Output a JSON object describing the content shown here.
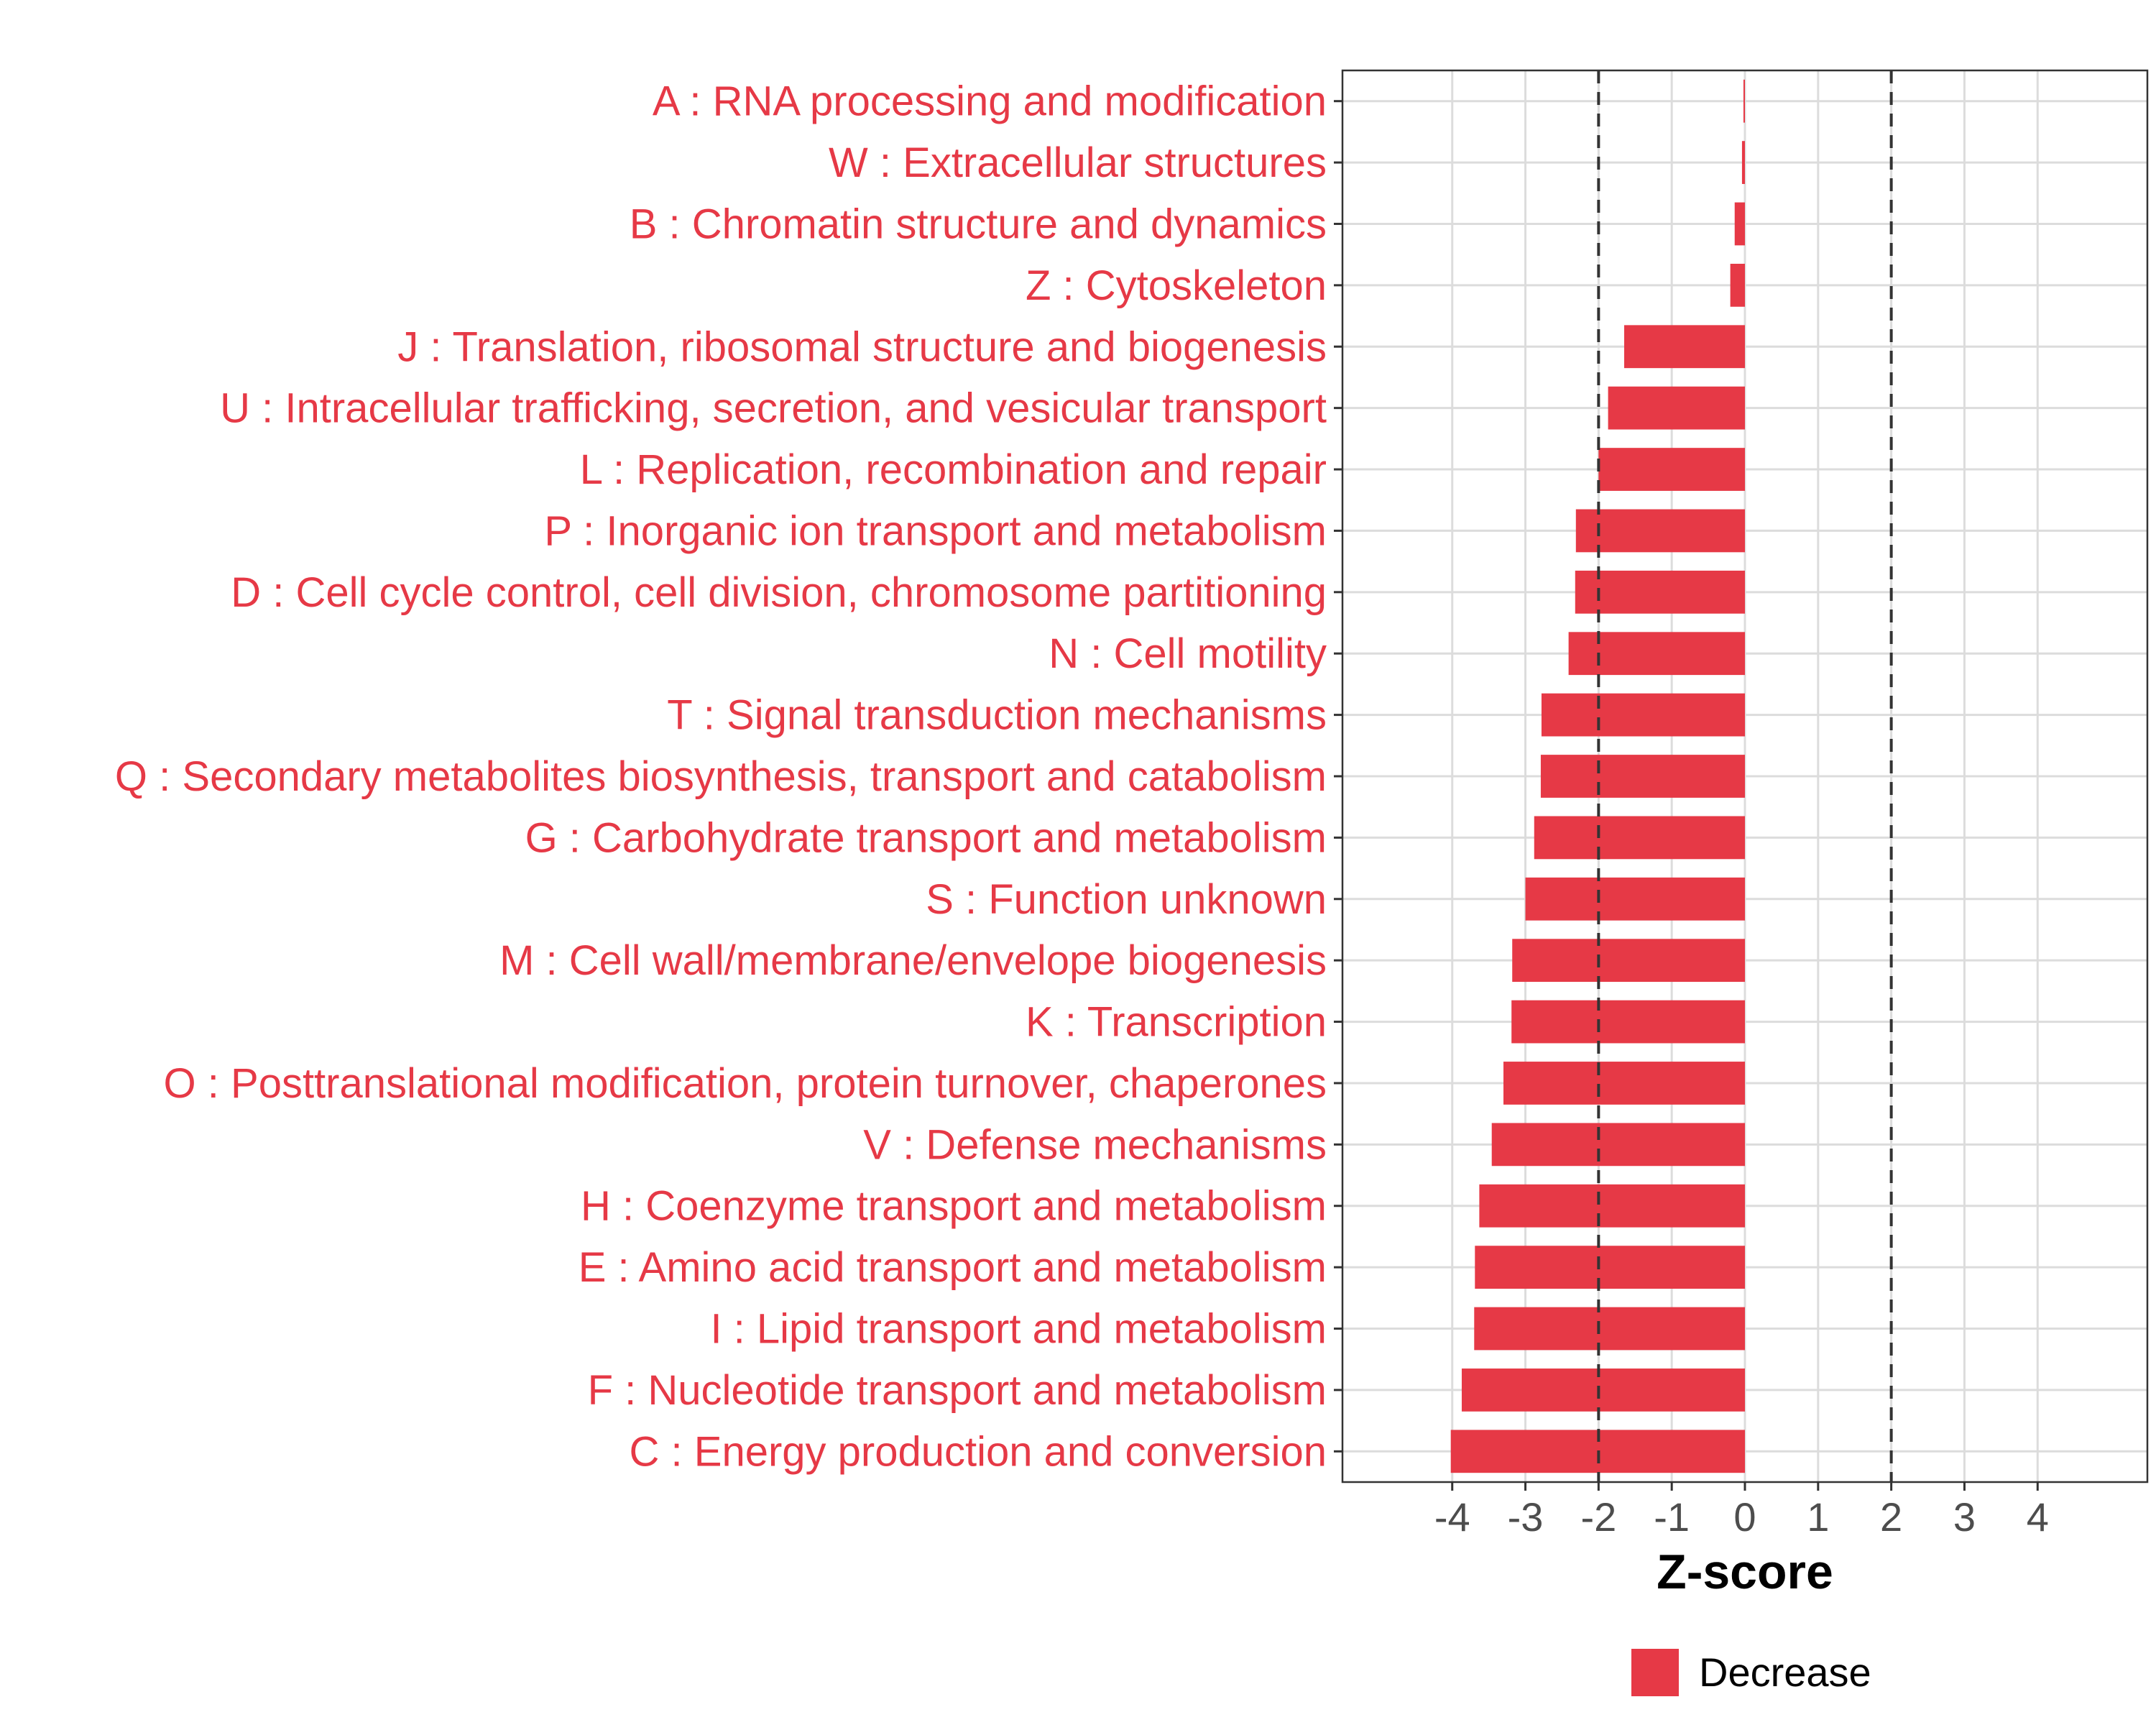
{
  "chart_data": {
    "type": "bar",
    "orientation": "horizontal",
    "xlabel": "Z-score",
    "ylabel": "",
    "title": "",
    "xlim": [
      -5.5,
      5.5
    ],
    "xticks": [
      -4,
      -3,
      -2,
      -1,
      0,
      1,
      2,
      3,
      4
    ],
    "xtick_labels": [
      "-4",
      "-3",
      "-2",
      "-1",
      "0",
      "1",
      "2",
      "3",
      "4"
    ],
    "reference_lines": [
      -2,
      2
    ],
    "grid": true,
    "legend_position": "bottom",
    "categories": [
      "A : RNA processing and modification",
      "W : Extracellular structures",
      "B : Chromatin structure and dynamics",
      "Z : Cytoskeleton",
      "J : Translation, ribosomal structure and biogenesis",
      "U : Intracellular trafficking, secretion, and vesicular transport",
      "L : Replication, recombination and repair",
      "P : Inorganic ion transport and metabolism",
      "D : Cell cycle control, cell division, chromosome partitioning",
      "N : Cell motility",
      "T : Signal transduction mechanisms",
      "Q : Secondary metabolites biosynthesis, transport and catabolism",
      "G : Carbohydrate transport and metabolism",
      "S : Function unknown",
      "M : Cell wall/membrane/envelope biogenesis",
      "K : Transcription",
      "O : Posttranslational modification, protein turnover, chaperones",
      "V : Defense mechanisms",
      "H : Coenzyme transport and metabolism",
      "E : Amino acid transport and metabolism",
      "I : Lipid transport and metabolism",
      "F : Nucleotide transport and metabolism",
      "C : Energy production and conversion"
    ],
    "series": [
      {
        "name": "Decrease",
        "color": "#e63946",
        "values": [
          -0.02,
          -0.04,
          -0.14,
          -0.2,
          -1.65,
          -1.87,
          -2.0,
          -2.31,
          -2.32,
          -2.41,
          -2.78,
          -2.79,
          -2.88,
          -3.0,
          -3.18,
          -3.19,
          -3.3,
          -3.46,
          -3.63,
          -3.69,
          -3.7,
          -3.87,
          -4.02
        ]
      }
    ],
    "label_color": "#e63946"
  },
  "legend": {
    "items": [
      {
        "label": "Decrease",
        "color": "#e63946"
      }
    ]
  }
}
